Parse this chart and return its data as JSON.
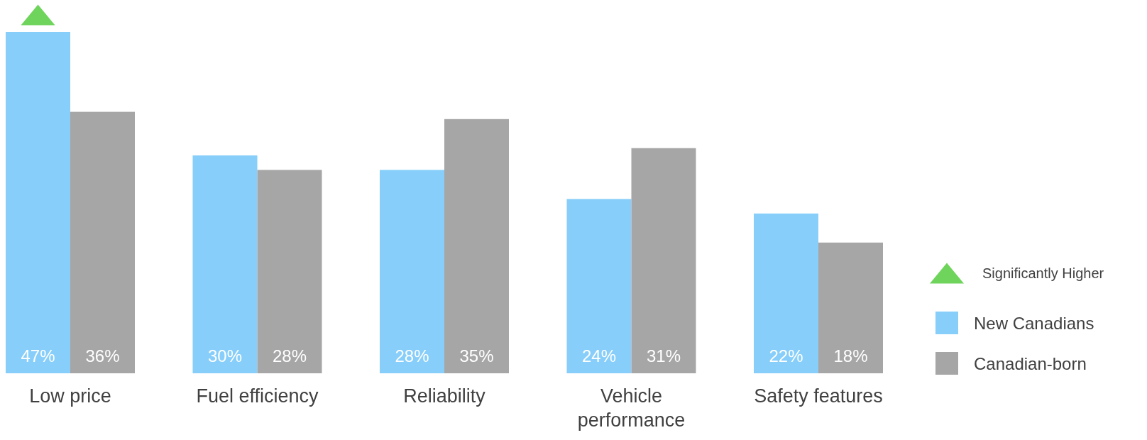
{
  "chart_data": {
    "type": "bar",
    "categories": [
      "Low price",
      "Fuel efficiency",
      "Reliability",
      "Vehicle performance",
      "Safety features"
    ],
    "series": [
      {
        "name": "New Canadians",
        "color": "#87cefa",
        "values": [
          47,
          30,
          28,
          24,
          22
        ],
        "value_labels": [
          "47%",
          "30%",
          "28%",
          "24%",
          "22%"
        ]
      },
      {
        "name": "Canadian-born",
        "color": "#a6a6a6",
        "values": [
          36,
          28,
          35,
          31,
          18
        ],
        "value_labels": [
          "36%",
          "28%",
          "35%",
          "31%",
          "18%"
        ]
      }
    ],
    "annotations": [
      "Significantly Higher"
    ],
    "legend": "right"
  }
}
